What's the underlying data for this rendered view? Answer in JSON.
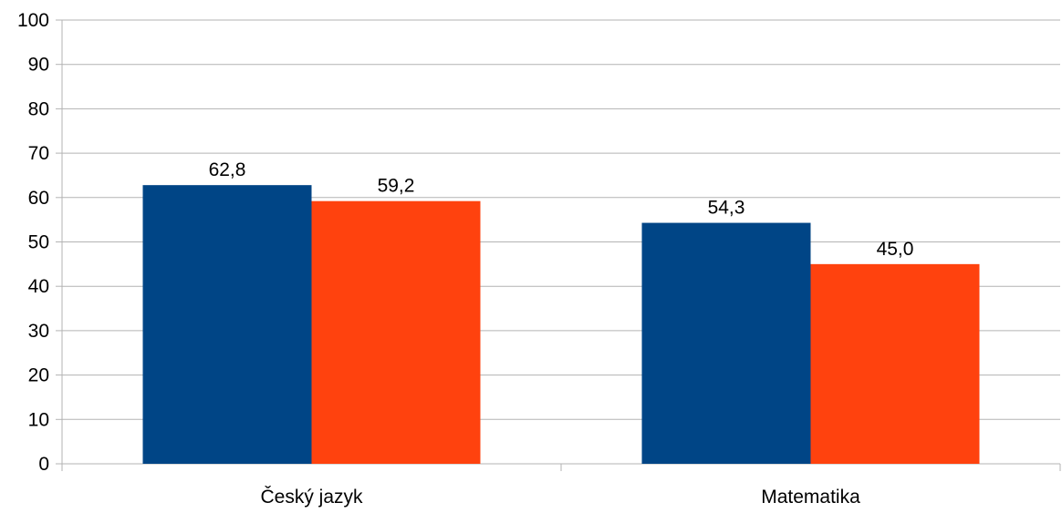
{
  "chart_data": {
    "type": "bar",
    "title": "",
    "xlabel": "",
    "ylabel": "",
    "categories": [
      "Český jazyk",
      "Matematika"
    ],
    "series": [
      {
        "values": [
          62.8,
          54.3
        ],
        "labels": [
          "62,8",
          "54,3"
        ],
        "color": "#004586"
      },
      {
        "values": [
          59.2,
          45.0
        ],
        "labels": [
          "59,2",
          "45,0"
        ],
        "color": "#ff420e"
      }
    ],
    "ylim": [
      0,
      100
    ],
    "yticks": [
      0,
      10,
      20,
      30,
      40,
      50,
      60,
      70,
      80,
      90,
      100
    ],
    "ytick_labels": [
      "0",
      "10",
      "20",
      "30",
      "40",
      "50",
      "60",
      "70",
      "80",
      "90",
      "100"
    ],
    "grid": true,
    "legend": "none",
    "gridline_color": "#b3b3b3"
  }
}
